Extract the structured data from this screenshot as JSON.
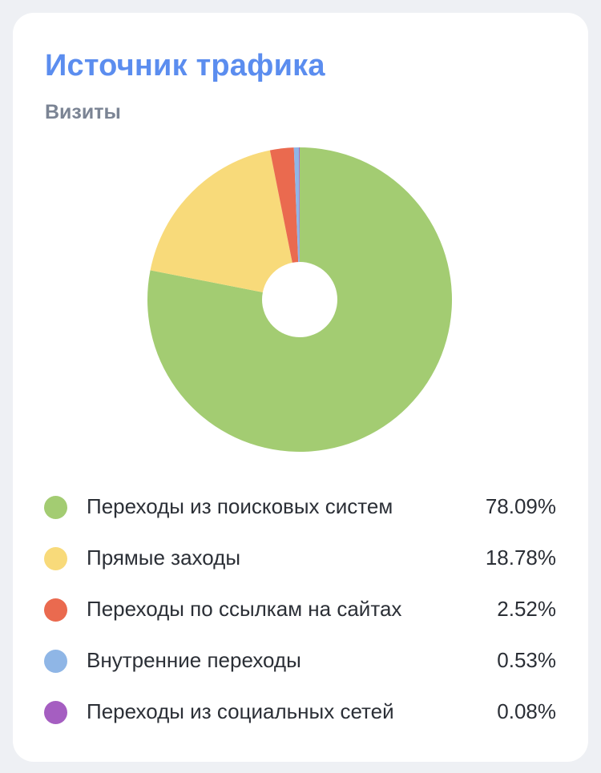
{
  "card": {
    "title": "Источник трафика",
    "subtitle": "Визиты"
  },
  "chart_data": {
    "type": "pie",
    "donut": true,
    "title": "Источник трафика",
    "subtitle": "Визиты",
    "series": [
      {
        "name": "Переходы из поисковых систем",
        "value": 78.09,
        "value_label": "78.09%",
        "color": "#a3cc72"
      },
      {
        "name": "Прямые заходы",
        "value": 18.78,
        "value_label": "18.78%",
        "color": "#f8da7a"
      },
      {
        "name": "Переходы по ссылкам на сайтах",
        "value": 2.52,
        "value_label": "2.52%",
        "color": "#ea6a4f"
      },
      {
        "name": "Внутренние переходы",
        "value": 0.53,
        "value_label": "0.53%",
        "color": "#8fb6e6"
      },
      {
        "name": "Переходы из социальных сетей",
        "value": 0.08,
        "value_label": "0.08%",
        "color": "#a55ec1"
      }
    ],
    "legend_position": "bottom"
  }
}
